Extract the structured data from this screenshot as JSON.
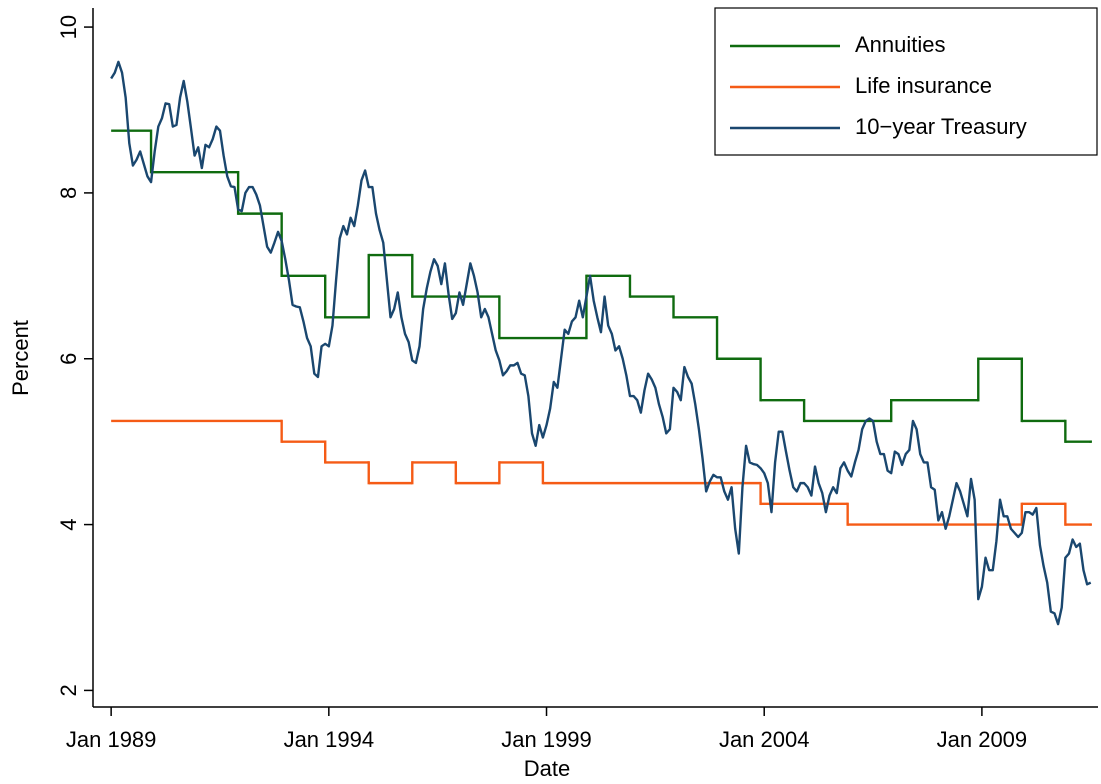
{
  "chart_data": {
    "type": "line",
    "xlabel": "Date",
    "ylabel": "Percent",
    "xlim": [
      "1988-08",
      "2011-09"
    ],
    "xticks": [
      {
        "value": "1989-01",
        "label": "Jan 1989"
      },
      {
        "value": "1994-01",
        "label": "Jan 1994"
      },
      {
        "value": "1999-01",
        "label": "Jan 1999"
      },
      {
        "value": "2004-01",
        "label": "Jan 2004"
      },
      {
        "value": "2009-01",
        "label": "Jan 2009"
      }
    ],
    "ylim": [
      1.8,
      10.23
    ],
    "yticks": [
      2,
      4,
      6,
      8,
      10
    ],
    "grid": false,
    "legend": "top-right",
    "series": [
      {
        "name": "Annuities",
        "color": "#0f6b0f",
        "step": "post",
        "x": [
          "1989-01",
          "1989-12",
          "1991-12",
          "1992-12",
          "1993-12",
          "1994-12",
          "1995-12",
          "1997-12",
          "1999-12",
          "2000-12",
          "2001-12",
          "2002-12",
          "2003-12",
          "2004-12",
          "2006-12",
          "2008-12",
          "2009-12",
          "2010-12",
          "2011-07"
        ],
        "values": [
          8.75,
          8.25,
          7.75,
          7.0,
          6.5,
          7.25,
          6.75,
          6.25,
          7.0,
          6.75,
          6.5,
          6.0,
          5.5,
          5.25,
          5.5,
          6.0,
          5.25,
          5.0,
          5.0
        ]
      },
      {
        "name": "Life insurance",
        "color": "#f55b16",
        "step": "post",
        "x": [
          "1989-01",
          "1992-12",
          "1993-12",
          "1994-12",
          "1995-12",
          "1996-12",
          "1997-12",
          "1998-12",
          "2003-12",
          "2005-12",
          "2009-12",
          "2010-12",
          "2011-07"
        ],
        "values": [
          5.25,
          5.0,
          4.75,
          4.5,
          4.75,
          4.5,
          4.75,
          4.5,
          4.25,
          4.0,
          4.25,
          4.0,
          4.0
        ]
      },
      {
        "name": "10−year Treasury",
        "color": "#1a476f",
        "x": [
          "1989-01",
          "1989-02",
          "1989-03",
          "1989-04",
          "1989-05",
          "1989-06",
          "1989-07",
          "1989-08",
          "1989-09",
          "1989-10",
          "1989-11",
          "1989-12",
          "1990-01",
          "1990-02",
          "1990-03",
          "1990-04",
          "1990-05",
          "1990-06",
          "1990-07",
          "1990-08",
          "1990-09",
          "1990-10",
          "1990-11",
          "1990-12",
          "1991-01",
          "1991-02",
          "1991-03",
          "1991-04",
          "1991-05",
          "1991-06",
          "1991-07",
          "1991-08",
          "1991-09",
          "1991-10",
          "1991-11",
          "1991-12",
          "1992-01",
          "1992-02",
          "1992-03",
          "1992-04",
          "1992-05",
          "1992-06",
          "1992-07",
          "1992-08",
          "1992-09",
          "1992-10",
          "1992-11",
          "1992-12",
          "1993-01",
          "1993-02",
          "1993-03",
          "1993-04",
          "1993-05",
          "1993-06",
          "1993-07",
          "1993-08",
          "1993-09",
          "1993-10",
          "1993-11",
          "1993-12",
          "1994-01",
          "1994-02",
          "1994-03",
          "1994-04",
          "1994-05",
          "1994-06",
          "1994-07",
          "1994-08",
          "1994-09",
          "1994-10",
          "1994-11",
          "1994-12",
          "1995-01",
          "1995-02",
          "1995-03",
          "1995-04",
          "1995-05",
          "1995-06",
          "1995-07",
          "1995-08",
          "1995-09",
          "1995-10",
          "1995-11",
          "1995-12",
          "1996-01",
          "1996-02",
          "1996-03",
          "1996-04",
          "1996-05",
          "1996-06",
          "1996-07",
          "1996-08",
          "1996-09",
          "1996-10",
          "1996-11",
          "1996-12",
          "1997-01",
          "1997-02",
          "1997-03",
          "1997-04",
          "1997-05",
          "1997-06",
          "1997-07",
          "1997-08",
          "1997-09",
          "1997-10",
          "1997-11",
          "1997-12",
          "1998-01",
          "1998-02",
          "1998-03",
          "1998-04",
          "1998-05",
          "1998-06",
          "1998-07",
          "1998-08",
          "1998-09",
          "1998-10",
          "1998-11",
          "1998-12",
          "1999-01",
          "1999-02",
          "1999-03",
          "1999-04",
          "1999-05",
          "1999-06",
          "1999-07",
          "1999-08",
          "1999-09",
          "1999-10",
          "1999-11",
          "1999-12",
          "2000-01",
          "2000-02",
          "2000-03",
          "2000-04",
          "2000-05",
          "2000-06",
          "2000-07",
          "2000-08",
          "2000-09",
          "2000-10",
          "2000-11",
          "2000-12",
          "2001-01",
          "2001-02",
          "2001-03",
          "2001-04",
          "2001-05",
          "2001-06",
          "2001-07",
          "2001-08",
          "2001-09",
          "2001-10",
          "2001-11",
          "2001-12",
          "2002-01",
          "2002-02",
          "2002-03",
          "2002-04",
          "2002-05",
          "2002-06",
          "2002-07",
          "2002-08",
          "2002-09",
          "2002-10",
          "2002-11",
          "2002-12",
          "2003-01",
          "2003-02",
          "2003-03",
          "2003-04",
          "2003-05",
          "2003-06",
          "2003-07",
          "2003-08",
          "2003-09",
          "2003-10",
          "2003-11",
          "2003-12",
          "2004-01",
          "2004-02",
          "2004-03",
          "2004-04",
          "2004-05",
          "2004-06",
          "2004-07",
          "2004-08",
          "2004-09",
          "2004-10",
          "2004-11",
          "2004-12",
          "2005-01",
          "2005-02",
          "2005-03",
          "2005-04",
          "2005-05",
          "2005-06",
          "2005-07",
          "2005-08",
          "2005-09",
          "2005-10",
          "2005-11",
          "2005-12",
          "2006-01",
          "2006-02",
          "2006-03",
          "2006-04",
          "2006-05",
          "2006-06",
          "2006-07",
          "2006-08",
          "2006-09",
          "2006-10",
          "2006-11",
          "2006-12",
          "2007-01",
          "2007-02",
          "2007-03",
          "2007-04",
          "2007-05",
          "2007-06",
          "2007-07",
          "2007-08",
          "2007-09",
          "2007-10",
          "2007-11",
          "2007-12",
          "2008-01",
          "2008-02",
          "2008-03",
          "2008-04",
          "2008-05",
          "2008-06",
          "2008-07",
          "2008-08",
          "2008-09",
          "2008-10",
          "2008-11",
          "2008-12",
          "2009-01",
          "2009-02",
          "2009-03",
          "2009-04",
          "2009-05",
          "2009-06",
          "2009-07",
          "2009-08",
          "2009-09",
          "2009-10",
          "2009-11",
          "2009-12",
          "2010-01",
          "2010-02",
          "2010-03",
          "2010-04",
          "2010-05",
          "2010-06",
          "2010-07",
          "2010-08",
          "2010-09",
          "2010-10",
          "2010-11",
          "2010-12",
          "2011-01",
          "2011-02",
          "2011-03",
          "2011-04",
          "2011-05",
          "2011-06",
          "2011-07"
        ],
        "values": [
          9.38,
          9.45,
          9.58,
          9.45,
          9.15,
          8.6,
          8.33,
          8.4,
          8.5,
          8.35,
          8.2,
          8.13,
          8.5,
          8.8,
          8.9,
          9.08,
          9.07,
          8.8,
          8.82,
          9.15,
          9.35,
          9.1,
          8.78,
          8.45,
          8.55,
          8.3,
          8.58,
          8.55,
          8.65,
          8.8,
          8.75,
          8.45,
          8.2,
          8.08,
          8.07,
          7.8,
          7.78,
          8.0,
          8.07,
          8.07,
          7.98,
          7.85,
          7.6,
          7.35,
          7.28,
          7.4,
          7.53,
          7.42,
          7.2,
          6.95,
          6.65,
          6.63,
          6.62,
          6.45,
          6.25,
          6.15,
          5.82,
          5.78,
          6.15,
          6.18,
          6.15,
          6.4,
          6.95,
          7.45,
          7.6,
          7.5,
          7.7,
          7.6,
          7.85,
          8.15,
          8.27,
          8.07,
          8.07,
          7.75,
          7.55,
          7.4,
          6.95,
          6.5,
          6.6,
          6.8,
          6.5,
          6.3,
          6.2,
          5.98,
          5.95,
          6.15,
          6.6,
          6.85,
          7.05,
          7.2,
          7.12,
          6.9,
          7.15,
          6.78,
          6.48,
          6.55,
          6.8,
          6.65,
          6.9,
          7.15,
          7.0,
          6.8,
          6.5,
          6.6,
          6.5,
          6.3,
          6.1,
          5.98,
          5.8,
          5.85,
          5.92,
          5.92,
          5.95,
          5.82,
          5.8,
          5.55,
          5.1,
          4.95,
          5.2,
          5.05,
          5.2,
          5.4,
          5.72,
          5.65,
          6.0,
          6.35,
          6.3,
          6.45,
          6.5,
          6.7,
          6.5,
          6.75,
          7.0,
          6.7,
          6.5,
          6.32,
          6.75,
          6.4,
          6.3,
          6.1,
          6.15,
          6.0,
          5.8,
          5.55,
          5.55,
          5.5,
          5.35,
          5.62,
          5.82,
          5.75,
          5.65,
          5.45,
          5.3,
          5.1,
          5.15,
          5.65,
          5.6,
          5.5,
          5.9,
          5.78,
          5.7,
          5.45,
          5.15,
          4.8,
          4.4,
          4.52,
          4.6,
          4.57,
          4.57,
          4.4,
          4.3,
          4.45,
          3.95,
          3.65,
          4.45,
          4.95,
          4.75,
          4.73,
          4.72,
          4.68,
          4.62,
          4.5,
          4.15,
          4.75,
          5.12,
          5.12,
          4.88,
          4.65,
          4.45,
          4.4,
          4.5,
          4.5,
          4.45,
          4.35,
          4.7,
          4.5,
          4.38,
          4.15,
          4.35,
          4.45,
          4.38,
          4.68,
          4.75,
          4.65,
          4.58,
          4.75,
          4.9,
          5.15,
          5.25,
          5.28,
          5.25,
          5.0,
          4.85,
          4.85,
          4.65,
          4.62,
          4.88,
          4.85,
          4.72,
          4.85,
          4.9,
          5.25,
          5.15,
          4.85,
          4.75,
          4.75,
          4.45,
          4.42,
          4.05,
          4.15,
          3.95,
          4.1,
          4.3,
          4.5,
          4.4,
          4.25,
          4.1,
          4.55,
          4.3,
          3.1,
          3.25,
          3.6,
          3.45,
          3.45,
          3.8,
          4.3,
          4.1,
          4.1,
          3.95,
          3.9,
          3.85,
          3.9,
          4.15,
          4.15,
          4.12,
          4.2,
          3.75,
          3.5,
          3.3,
          2.95,
          2.93,
          2.8,
          3.0,
          3.6,
          3.65,
          3.82,
          3.73,
          3.77,
          3.45,
          3.28,
          3.3
        ]
      }
    ]
  }
}
